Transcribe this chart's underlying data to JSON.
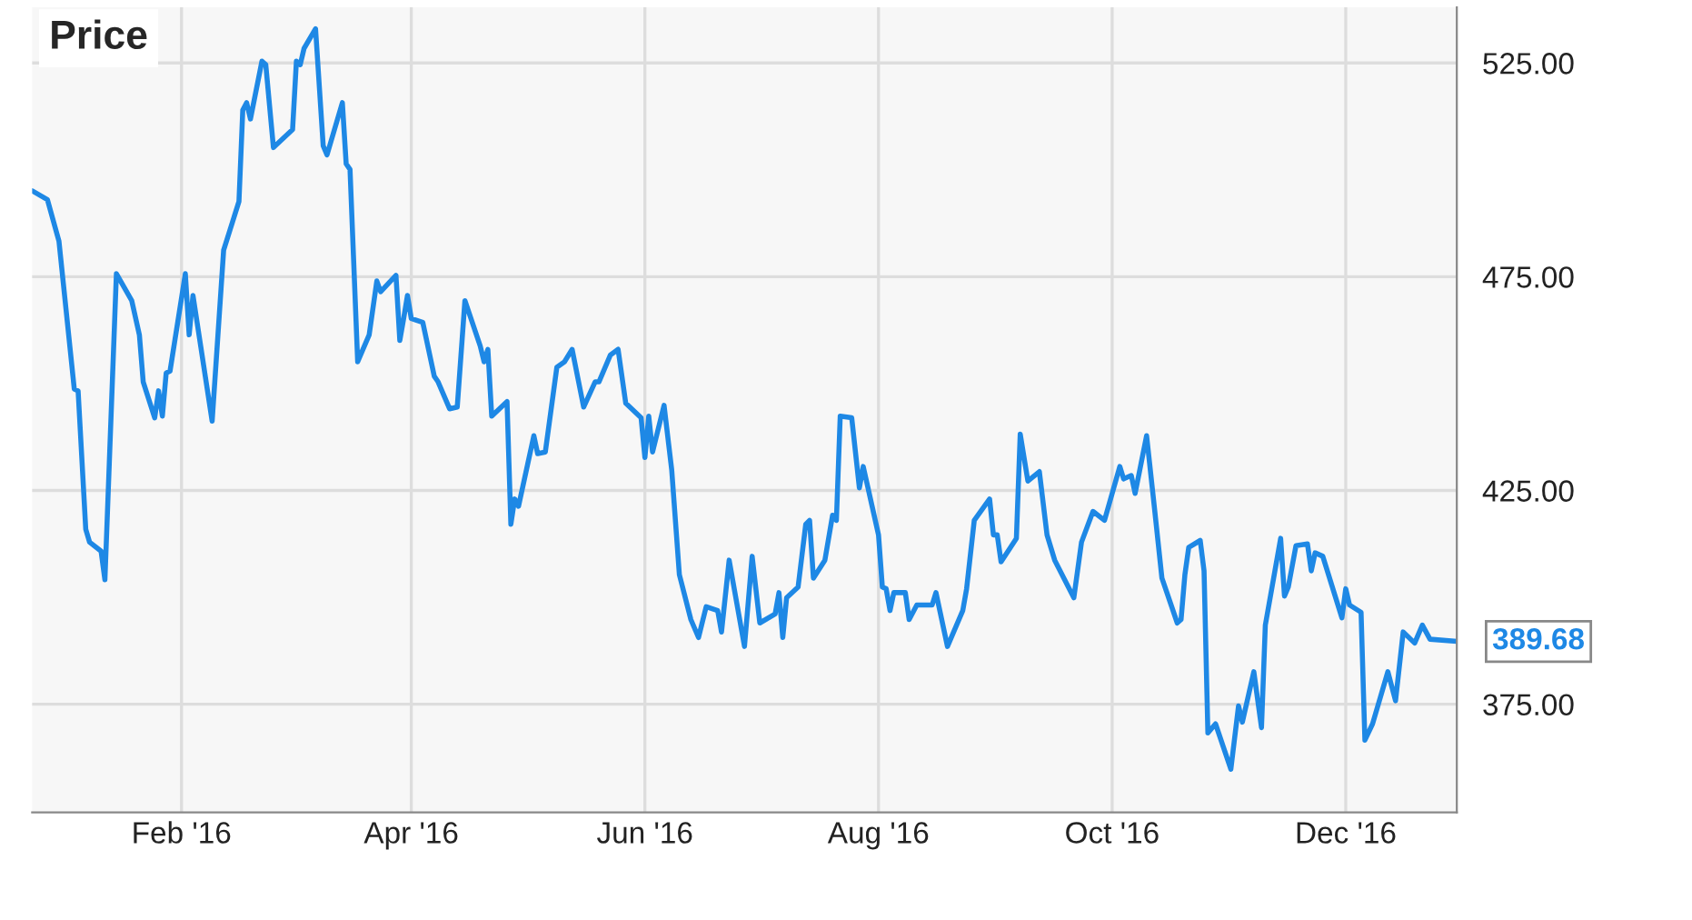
{
  "chart_data": {
    "type": "line",
    "title": "Price",
    "x": [
      "2015-12-24",
      "2015-12-28",
      "2015-12-31",
      "2016-01-04",
      "2016-01-05",
      "2016-01-07",
      "2016-01-08",
      "2016-01-11",
      "2016-01-12",
      "2016-01-15",
      "2016-01-19",
      "2016-01-21",
      "2016-01-22",
      "2016-01-25",
      "2016-01-26",
      "2016-01-27",
      "2016-01-28",
      "2016-01-29",
      "2016-02-02",
      "2016-02-03",
      "2016-02-04",
      "2016-02-09",
      "2016-02-12",
      "2016-02-16",
      "2016-02-17",
      "2016-02-18",
      "2016-02-19",
      "2016-02-22",
      "2016-02-23",
      "2016-02-25",
      "2016-03-01",
      "2016-03-02",
      "2016-03-03",
      "2016-03-04",
      "2016-03-07",
      "2016-03-09",
      "2016-03-10",
      "2016-03-14",
      "2016-03-15",
      "2016-03-16",
      "2016-03-18",
      "2016-03-21",
      "2016-03-23",
      "2016-03-24",
      "2016-03-28",
      "2016-03-29",
      "2016-03-30",
      "2016-03-31",
      "2016-04-01",
      "2016-04-04",
      "2016-04-07",
      "2016-04-08",
      "2016-04-11",
      "2016-04-13",
      "2016-04-15",
      "2016-04-19",
      "2016-04-20",
      "2016-04-21",
      "2016-04-22",
      "2016-04-26",
      "2016-04-27",
      "2016-04-28",
      "2016-04-29",
      "2016-05-03",
      "2016-05-04",
      "2016-05-06",
      "2016-05-09",
      "2016-05-11",
      "2016-05-13",
      "2016-05-16",
      "2016-05-19",
      "2016-05-20",
      "2016-05-23",
      "2016-05-25",
      "2016-05-27",
      "2016-05-31",
      "2016-06-01",
      "2016-06-02",
      "2016-06-03",
      "2016-06-06",
      "2016-06-08",
      "2016-06-10",
      "2016-06-13",
      "2016-06-15",
      "2016-06-17",
      "2016-06-20",
      "2016-06-21",
      "2016-06-23",
      "2016-06-27",
      "2016-06-29",
      "2016-07-01",
      "2016-07-05",
      "2016-07-06",
      "2016-07-07",
      "2016-07-08",
      "2016-07-11",
      "2016-07-13",
      "2016-07-14",
      "2016-07-15",
      "2016-07-18",
      "2016-07-20",
      "2016-07-21",
      "2016-07-22",
      "2016-07-25",
      "2016-07-27",
      "2016-07-28",
      "2016-08-01",
      "2016-08-02",
      "2016-08-03",
      "2016-08-04",
      "2016-08-05",
      "2016-08-08",
      "2016-08-09",
      "2016-08-11",
      "2016-08-15",
      "2016-08-16",
      "2016-08-19",
      "2016-08-23",
      "2016-08-24",
      "2016-08-26",
      "2016-08-30",
      "2016-08-31",
      "2016-09-01",
      "2016-09-02",
      "2016-09-06",
      "2016-09-07",
      "2016-09-09",
      "2016-09-12",
      "2016-09-14",
      "2016-09-16",
      "2016-09-21",
      "2016-09-23",
      "2016-09-26",
      "2016-09-29",
      "2016-10-03",
      "2016-10-04",
      "2016-10-06",
      "2016-10-07",
      "2016-10-10",
      "2016-10-12",
      "2016-10-14",
      "2016-10-18",
      "2016-10-19",
      "2016-10-20",
      "2016-10-21",
      "2016-10-24",
      "2016-10-25",
      "2016-10-26",
      "2016-10-28",
      "2016-11-01",
      "2016-11-03",
      "2016-11-04",
      "2016-11-07",
      "2016-11-09",
      "2016-11-10",
      "2016-11-14",
      "2016-11-15",
      "2016-11-16",
      "2016-11-18",
      "2016-11-21",
      "2016-11-22",
      "2016-11-23",
      "2016-11-25",
      "2016-11-30",
      "2016-12-01",
      "2016-12-02",
      "2016-12-05",
      "2016-12-06",
      "2016-12-08",
      "2016-12-12",
      "2016-12-14",
      "2016-12-16",
      "2016-12-19",
      "2016-12-21",
      "2016-12-23",
      "2016-12-30"
    ],
    "series": [
      {
        "color": "#1e88e5",
        "values": [
          495.1,
          493.0,
          483.3,
          448.7,
          448.3,
          415.9,
          412.9,
          410.8,
          404.1,
          475.7,
          469.4,
          461.4,
          450.4,
          442.0,
          448.3,
          442.4,
          452.5,
          452.9,
          475.7,
          461.4,
          470.6,
          441.2,
          481.2,
          492.6,
          514.0,
          515.7,
          511.9,
          525.4,
          524.6,
          505.2,
          509.4,
          525.4,
          524.6,
          528.4,
          533.0,
          505.6,
          503.5,
          515.7,
          501.4,
          500.1,
          455.1,
          461.4,
          474.0,
          471.5,
          475.3,
          460.1,
          465.2,
          470.6,
          465.2,
          464.3,
          451.7,
          450.4,
          444.1,
          444.5,
          469.4,
          458.8,
          455.1,
          458.0,
          442.4,
          445.8,
          417.1,
          423.0,
          421.3,
          437.8,
          433.6,
          434.0,
          453.8,
          455.1,
          458.0,
          444.5,
          450.4,
          450.4,
          456.7,
          458.0,
          445.4,
          442.0,
          432.7,
          442.4,
          434.0,
          444.9,
          429.8,
          405.3,
          394.8,
          390.6,
          397.8,
          396.9,
          391.9,
          408.7,
          388.5,
          409.6,
          394.0,
          396.1,
          401.1,
          390.6,
          399.9,
          402.4,
          417.1,
          418.0,
          404.5,
          408.7,
          419.2,
          418.0,
          442.4,
          442.0,
          425.6,
          430.6,
          414.6,
          402.4,
          402.0,
          396.9,
          401.1,
          401.1,
          394.8,
          398.2,
          398.2,
          401.1,
          388.5,
          396.9,
          402.0,
          418.0,
          423.0,
          414.6,
          414.6,
          408.3,
          413.8,
          438.2,
          427.2,
          429.4,
          414.6,
          408.7,
          399.9,
          412.9,
          420.1,
          418.0,
          430.6,
          427.7,
          428.5,
          424.3,
          437.8,
          421.3,
          404.5,
          394.0,
          394.8,
          405.3,
          411.7,
          413.3,
          406.2,
          368.3,
          370.4,
          359.8,
          374.6,
          370.8,
          382.6,
          369.5,
          393.5,
          413.8,
          400.3,
          402.4,
          412.1,
          412.5,
          406.2,
          410.4,
          409.6,
          395.2,
          402.0,
          398.2,
          396.5,
          366.6,
          370.4,
          382.6,
          375.8,
          391.9,
          389.3,
          393.5,
          390.2,
          389.68
        ]
      }
    ],
    "xlim": [
      "2015-12-24",
      "2016-12-30"
    ],
    "xticks": [
      {
        "value": "2016-02-01",
        "label": "Feb '16"
      },
      {
        "value": "2016-04-01",
        "label": "Apr '16"
      },
      {
        "value": "2016-06-01",
        "label": "Jun '16"
      },
      {
        "value": "2016-08-01",
        "label": "Aug '16"
      },
      {
        "value": "2016-10-01",
        "label": "Oct '16"
      },
      {
        "value": "2016-12-01",
        "label": "Dec '16"
      }
    ],
    "ylim": [
      349.7,
      538
    ],
    "yticks": [
      {
        "value": 375,
        "label": "375.00"
      },
      {
        "value": 425,
        "label": "425.00"
      },
      {
        "value": 475,
        "label": "475.00"
      },
      {
        "value": 525,
        "label": "525.00"
      }
    ],
    "annotations": [
      {
        "text": "389.68",
        "x": "2016-12-30",
        "y": 389.68
      }
    ],
    "grid": true,
    "marker": "none",
    "line_style": "solid",
    "legend": false
  }
}
